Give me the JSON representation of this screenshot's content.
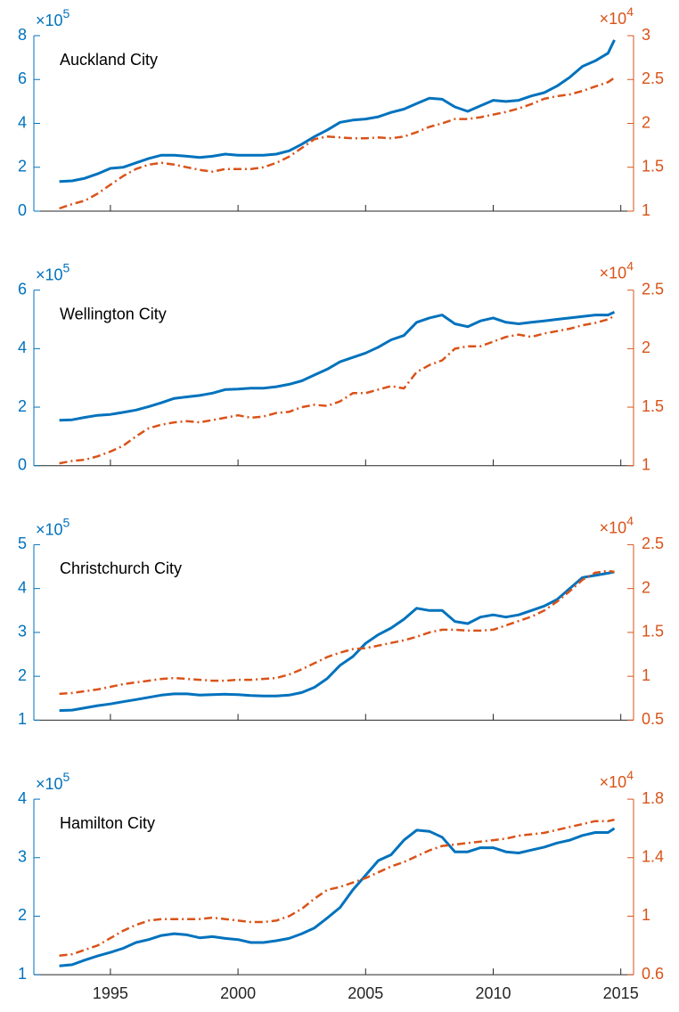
{
  "chart_data": [
    {
      "type": "line",
      "title": "Auckland City",
      "xlim": [
        1992,
        2015.5
      ],
      "xticks": [
        1995,
        2000,
        2005,
        2010,
        2015
      ],
      "show_xtick_labels": false,
      "ylim": [
        0,
        8
      ],
      "yticks": [
        0,
        2,
        4,
        6,
        8
      ],
      "y2lim": [
        1,
        3
      ],
      "y2ticks": [
        1,
        1.5,
        2,
        2.5,
        3
      ],
      "yscale_text": "×10",
      "yscale_power": 5,
      "y2scale_text": "×10",
      "y2scale_power": 4,
      "grid": false,
      "x": [
        1993,
        1993.5,
        1994,
        1994.5,
        1995,
        1995.5,
        1996,
        1996.5,
        1997,
        1997.5,
        1998,
        1998.5,
        1999,
        1999.5,
        2000,
        2000.5,
        2001,
        2001.5,
        2002,
        2002.5,
        2003,
        2003.5,
        2004,
        2004.5,
        2005,
        2005.5,
        2006,
        2006.5,
        2007,
        2007.5,
        2008,
        2008.5,
        2009,
        2009.5,
        2010,
        2010.5,
        2011,
        2011.5,
        2012,
        2012.5,
        2013,
        2013.5,
        2014,
        2014.5,
        2014.75
      ],
      "series": [
        {
          "color": "#0072BD",
          "style": "solid",
          "values": [
            1.35,
            1.38,
            1.5,
            1.7,
            1.95,
            2.0,
            2.2,
            2.4,
            2.55,
            2.55,
            2.5,
            2.45,
            2.5,
            2.6,
            2.55,
            2.55,
            2.55,
            2.6,
            2.75,
            3.05,
            3.4,
            3.7,
            4.05,
            4.15,
            4.2,
            4.3,
            4.5,
            4.65,
            4.9,
            5.15,
            5.1,
            4.75,
            4.55,
            4.8,
            5.05,
            5.0,
            5.05,
            5.25,
            5.4,
            5.7,
            6.1,
            6.6,
            6.85,
            7.2,
            7.8
          ]
        },
        {
          "color": "#D95319",
          "style": "dashdot",
          "axis": "y2",
          "values": [
            1.03,
            1.08,
            1.12,
            1.2,
            1.3,
            1.4,
            1.48,
            1.53,
            1.55,
            1.53,
            1.5,
            1.47,
            1.45,
            1.48,
            1.48,
            1.48,
            1.5,
            1.55,
            1.62,
            1.72,
            1.82,
            1.85,
            1.84,
            1.83,
            1.83,
            1.84,
            1.83,
            1.85,
            1.9,
            1.96,
            2.0,
            2.05,
            2.05,
            2.07,
            2.1,
            2.13,
            2.17,
            2.22,
            2.28,
            2.31,
            2.33,
            2.37,
            2.42,
            2.47,
            2.52
          ]
        }
      ]
    },
    {
      "type": "line",
      "title": "Wellington City",
      "xlim": [
        1992,
        2015.5
      ],
      "xticks": [
        1995,
        2000,
        2005,
        2010,
        2015
      ],
      "show_xtick_labels": false,
      "ylim": [
        0,
        6
      ],
      "yticks": [
        0,
        2,
        4,
        6
      ],
      "y2lim": [
        1,
        2.5
      ],
      "y2ticks": [
        1,
        1.5,
        2,
        2.5
      ],
      "yscale_text": "×10",
      "yscale_power": 5,
      "y2scale_text": "×10",
      "y2scale_power": 4,
      "grid": false,
      "x": [
        1993,
        1993.5,
        1994,
        1994.5,
        1995,
        1995.5,
        1996,
        1996.5,
        1997,
        1997.5,
        1998,
        1998.5,
        1999,
        1999.5,
        2000,
        2000.5,
        2001,
        2001.5,
        2002,
        2002.5,
        2003,
        2003.5,
        2004,
        2004.5,
        2005,
        2005.5,
        2006,
        2006.5,
        2007,
        2007.5,
        2008,
        2008.5,
        2009,
        2009.5,
        2010,
        2010.5,
        2011,
        2011.5,
        2012,
        2012.5,
        2013,
        2013.5,
        2014,
        2014.5,
        2014.75
      ],
      "series": [
        {
          "color": "#0072BD",
          "style": "solid",
          "values": [
            1.55,
            1.57,
            1.65,
            1.72,
            1.75,
            1.82,
            1.9,
            2.02,
            2.15,
            2.3,
            2.35,
            2.4,
            2.48,
            2.6,
            2.62,
            2.65,
            2.65,
            2.7,
            2.78,
            2.9,
            3.1,
            3.3,
            3.55,
            3.7,
            3.85,
            4.05,
            4.3,
            4.45,
            4.9,
            5.05,
            5.15,
            4.85,
            4.75,
            4.95,
            5.05,
            4.9,
            4.85,
            4.9,
            4.95,
            5.0,
            5.05,
            5.1,
            5.15,
            5.15,
            5.25
          ]
        },
        {
          "color": "#D95319",
          "style": "dashdot",
          "axis": "y2",
          "values": [
            1.02,
            1.04,
            1.05,
            1.08,
            1.12,
            1.17,
            1.25,
            1.32,
            1.35,
            1.37,
            1.38,
            1.37,
            1.39,
            1.41,
            1.43,
            1.41,
            1.42,
            1.45,
            1.46,
            1.5,
            1.52,
            1.51,
            1.55,
            1.62,
            1.62,
            1.65,
            1.68,
            1.66,
            1.8,
            1.86,
            1.9,
            2.0,
            2.02,
            2.02,
            2.06,
            2.1,
            2.12,
            2.1,
            2.13,
            2.15,
            2.17,
            2.2,
            2.22,
            2.25,
            2.28
          ]
        }
      ]
    },
    {
      "type": "line",
      "title": "Christchurch City",
      "xlim": [
        1992,
        2015.5
      ],
      "xticks": [
        1995,
        2000,
        2005,
        2010,
        2015
      ],
      "show_xtick_labels": false,
      "ylim": [
        1,
        5
      ],
      "yticks": [
        1,
        2,
        3,
        4,
        5
      ],
      "y2lim": [
        0.5,
        2.5
      ],
      "y2ticks": [
        0.5,
        1,
        1.5,
        2,
        2.5
      ],
      "yscale_text": "×10",
      "yscale_power": 5,
      "y2scale_text": "×10",
      "y2scale_power": 4,
      "grid": false,
      "x": [
        1993,
        1993.5,
        1994,
        1994.5,
        1995,
        1995.5,
        1996,
        1996.5,
        1997,
        1997.5,
        1998,
        1998.5,
        1999,
        1999.5,
        2000,
        2000.5,
        2001,
        2001.5,
        2002,
        2002.5,
        2003,
        2003.5,
        2004,
        2004.5,
        2005,
        2005.5,
        2006,
        2006.5,
        2007,
        2007.5,
        2008,
        2008.5,
        2009,
        2009.5,
        2010,
        2010.5,
        2011,
        2011.5,
        2012,
        2012.5,
        2013,
        2013.5,
        2014,
        2014.5,
        2014.75
      ],
      "series": [
        {
          "color": "#0072BD",
          "style": "solid",
          "values": [
            1.22,
            1.23,
            1.28,
            1.33,
            1.37,
            1.42,
            1.47,
            1.52,
            1.57,
            1.6,
            1.6,
            1.57,
            1.58,
            1.59,
            1.58,
            1.56,
            1.55,
            1.55,
            1.57,
            1.63,
            1.75,
            1.95,
            2.25,
            2.45,
            2.75,
            2.95,
            3.1,
            3.3,
            3.55,
            3.5,
            3.5,
            3.25,
            3.2,
            3.35,
            3.4,
            3.35,
            3.4,
            3.5,
            3.6,
            3.75,
            4.0,
            4.25,
            4.3,
            4.35,
            4.38
          ]
        },
        {
          "color": "#D95319",
          "style": "dashdot",
          "axis": "y2",
          "values": [
            0.8,
            0.81,
            0.83,
            0.85,
            0.88,
            0.91,
            0.93,
            0.95,
            0.97,
            0.98,
            0.97,
            0.96,
            0.95,
            0.95,
            0.96,
            0.96,
            0.97,
            0.98,
            1.02,
            1.08,
            1.15,
            1.22,
            1.27,
            1.31,
            1.32,
            1.35,
            1.38,
            1.41,
            1.45,
            1.5,
            1.53,
            1.53,
            1.52,
            1.52,
            1.53,
            1.58,
            1.63,
            1.68,
            1.75,
            1.85,
            1.97,
            2.1,
            2.18,
            2.2,
            2.19
          ]
        }
      ]
    },
    {
      "type": "line",
      "title": "Hamilton City",
      "xlim": [
        1992,
        2015.5
      ],
      "xticks": [
        1995,
        2000,
        2005,
        2010,
        2015
      ],
      "show_xtick_labels": true,
      "ylim": [
        1,
        4
      ],
      "yticks": [
        1,
        2,
        3,
        4
      ],
      "y2lim": [
        0.6,
        1.8
      ],
      "y2ticks": [
        0.6,
        1,
        1.4,
        1.8
      ],
      "yscale_text": "×10",
      "yscale_power": 5,
      "y2scale_text": "×10",
      "y2scale_power": 4,
      "grid": false,
      "x": [
        1993,
        1993.5,
        1994,
        1994.5,
        1995,
        1995.5,
        1996,
        1996.5,
        1997,
        1997.5,
        1998,
        1998.5,
        1999,
        1999.5,
        2000,
        2000.5,
        2001,
        2001.5,
        2002,
        2002.5,
        2003,
        2003.5,
        2004,
        2004.5,
        2005,
        2005.5,
        2006,
        2006.5,
        2007,
        2007.5,
        2008,
        2008.5,
        2009,
        2009.5,
        2010,
        2010.5,
        2011,
        2011.5,
        2012,
        2012.5,
        2013,
        2013.5,
        2014,
        2014.5,
        2014.75
      ],
      "series": [
        {
          "color": "#0072BD",
          "style": "solid",
          "values": [
            1.15,
            1.17,
            1.25,
            1.32,
            1.38,
            1.45,
            1.55,
            1.6,
            1.67,
            1.7,
            1.68,
            1.63,
            1.65,
            1.62,
            1.6,
            1.55,
            1.55,
            1.58,
            1.62,
            1.7,
            1.8,
            1.97,
            2.15,
            2.45,
            2.7,
            2.95,
            3.05,
            3.3,
            3.47,
            3.45,
            3.35,
            3.1,
            3.1,
            3.17,
            3.17,
            3.1,
            3.08,
            3.13,
            3.18,
            3.25,
            3.3,
            3.38,
            3.43,
            3.43,
            3.5
          ]
        },
        {
          "color": "#D95319",
          "style": "dashdot",
          "axis": "y2",
          "values": [
            0.73,
            0.74,
            0.77,
            0.8,
            0.85,
            0.9,
            0.94,
            0.97,
            0.98,
            0.98,
            0.98,
            0.98,
            0.99,
            0.98,
            0.97,
            0.96,
            0.96,
            0.97,
            1.0,
            1.05,
            1.12,
            1.18,
            1.2,
            1.23,
            1.26,
            1.3,
            1.34,
            1.37,
            1.41,
            1.45,
            1.48,
            1.49,
            1.5,
            1.51,
            1.52,
            1.53,
            1.55,
            1.56,
            1.57,
            1.59,
            1.61,
            1.63,
            1.65,
            1.65,
            1.66
          ]
        }
      ]
    }
  ]
}
